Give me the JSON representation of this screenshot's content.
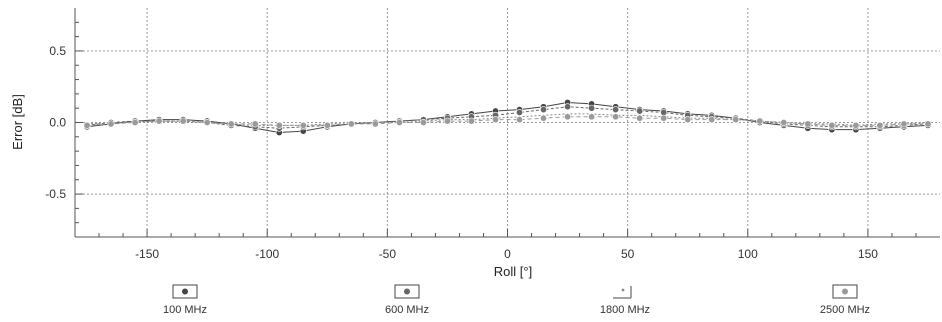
{
  "chart_data": {
    "type": "line",
    "title": "",
    "xlabel": "Roll [°]",
    "ylabel": "Error [dB]",
    "xlim": [
      -180,
      180
    ],
    "ylim": [
      -0.8,
      0.8
    ],
    "xticks": [
      -150,
      -100,
      -50,
      0,
      50,
      100,
      150
    ],
    "yticks": [
      0.5,
      0.0,
      -0.5
    ],
    "ytick_labels": [
      "0.5",
      "0.0",
      "-0.5"
    ],
    "grid": true,
    "legend_position": "bottom",
    "x": [
      -175,
      -165,
      -155,
      -145,
      -135,
      -125,
      -115,
      -105,
      -95,
      -85,
      -75,
      -65,
      -55,
      -45,
      -35,
      -25,
      -15,
      -5,
      5,
      15,
      25,
      35,
      45,
      55,
      65,
      75,
      85,
      95,
      105,
      115,
      125,
      135,
      145,
      155,
      165,
      175
    ],
    "series": [
      {
        "name": "100 MHz",
        "marker": "circle",
        "values": [
          -0.03,
          -0.01,
          0.01,
          0.02,
          0.02,
          0.01,
          -0.01,
          -0.04,
          -0.07,
          -0.06,
          -0.03,
          -0.01,
          0.0,
          0.01,
          0.02,
          0.04,
          0.06,
          0.08,
          0.09,
          0.11,
          0.14,
          0.13,
          0.11,
          0.09,
          0.08,
          0.06,
          0.05,
          0.03,
          0.0,
          -0.02,
          -0.04,
          -0.05,
          -0.05,
          -0.04,
          -0.03,
          -0.02
        ]
      },
      {
        "name": "600 MHz",
        "marker": "circle",
        "values": [
          -0.02,
          0.0,
          0.01,
          0.01,
          0.01,
          0.0,
          -0.02,
          -0.03,
          -0.04,
          -0.03,
          -0.02,
          -0.01,
          0.0,
          0.01,
          0.02,
          0.03,
          0.04,
          0.05,
          0.07,
          0.09,
          0.11,
          0.1,
          0.09,
          0.08,
          0.07,
          0.05,
          0.04,
          0.03,
          0.01,
          -0.01,
          -0.02,
          -0.03,
          -0.03,
          -0.03,
          -0.02,
          -0.01
        ]
      },
      {
        "name": "1800 MHz",
        "marker": "none",
        "values": [
          -0.01,
          0.0,
          0.0,
          0.01,
          0.0,
          0.0,
          -0.01,
          -0.02,
          -0.02,
          -0.02,
          -0.01,
          0.0,
          0.0,
          0.0,
          0.01,
          0.02,
          0.02,
          0.03,
          0.04,
          0.05,
          0.06,
          0.06,
          0.05,
          0.05,
          0.04,
          0.03,
          0.03,
          0.02,
          0.01,
          0.0,
          -0.01,
          -0.01,
          -0.02,
          -0.01,
          -0.01,
          0.0
        ]
      },
      {
        "name": "2500 MHz",
        "marker": "circle",
        "values": [
          -0.02,
          -0.01,
          0.0,
          0.01,
          0.01,
          0.0,
          -0.01,
          -0.01,
          -0.02,
          -0.02,
          -0.02,
          -0.01,
          -0.01,
          0.0,
          0.0,
          0.01,
          0.01,
          0.02,
          0.02,
          0.03,
          0.04,
          0.04,
          0.04,
          0.03,
          0.03,
          0.02,
          0.02,
          0.02,
          0.01,
          0.0,
          -0.01,
          -0.02,
          -0.02,
          -0.02,
          -0.01,
          -0.01
        ]
      }
    ],
    "colors": {
      "series": [
        "#444444",
        "#666666",
        "#888888",
        "#9a9a9a"
      ],
      "grid": "#9a9a9a",
      "axis": "#555555"
    }
  }
}
